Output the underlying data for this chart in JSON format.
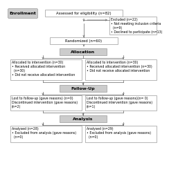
{
  "enrollment_label": "Enrollment",
  "assess_box": "Assessed for eligibility (n=82)",
  "excluded_box": "Excluded (n=22)\n• Not meeting inclusion criteria\n  (n=9)\n• Declined to participate (n=13)",
  "randomized_box": "Randomized (n=60)",
  "allocation_box": "Allocation",
  "alloc_left": "Allocated to intervention (n=30)\n• Received allocated intervention\n  (n=30)\n• Did not receive allocated intervention",
  "alloc_right": "Allocated to intervention (n=30)\n• Received allocated intervention (n=30)\n• Did not receive allocated intervention",
  "followup_box": "Follow-Up",
  "follow_left": "Lost to follow-up (gave reasons) (n=0)\nDiscontinued intervention (gave reasons)\n(n=2)",
  "follow_right": "Lost to follow-up (gave reasons)(n= 0)\nDiscontinued intervention (gave reasons)\n(n=1)",
  "analysis_box": "Analysis",
  "analysis_left": "Analysed (n=28)\n• Excluded from analysis (gave reasons)\n  (n=0)",
  "analysis_right": "Analysed (n=29)\n• Excluded from analysis (gave reasons)\n  (n=0)",
  "bg_color": "#ffffff",
  "box_edge_color": "#999999",
  "header_bg": "#cccccc",
  "text_color": "#000000",
  "fs": 3.8,
  "hfs": 4.5
}
